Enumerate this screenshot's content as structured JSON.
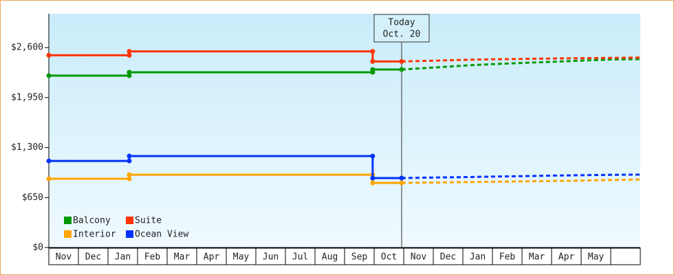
{
  "chart_data": {
    "type": "line",
    "categories": [
      "Nov",
      "Dec",
      "Jan",
      "Feb",
      "Mar",
      "Apr",
      "May",
      "Jun",
      "Jul",
      "Aug",
      "Sep",
      "Oct",
      "Nov",
      "Dec",
      "Jan",
      "Feb",
      "Mar",
      "Apr",
      "May",
      null
    ],
    "xlim": [
      0,
      20
    ],
    "ylim": [
      0,
      3040
    ],
    "yticks": [
      {
        "value": 0,
        "label": "$0"
      },
      {
        "value": 650,
        "label": "$650"
      },
      {
        "value": 1300,
        "label": "$1,300"
      },
      {
        "value": 1950,
        "label": "$1,950"
      },
      {
        "value": 2600,
        "label": "$2,600"
      }
    ],
    "legend": "lower left",
    "annotation": {
      "x": 11.93,
      "lines": [
        "Today",
        "Oct. 20"
      ]
    },
    "series": [
      {
        "name": "Balcony",
        "color": "#009900",
        "x": [
          0,
          2.72,
          2.72,
          10.95,
          10.95,
          11.93
        ],
        "values": [
          2235,
          2235,
          2279,
          2279,
          2315,
          2315
        ],
        "projection_x": [
          11.93,
          13,
          14,
          15,
          16,
          17,
          18,
          19,
          20
        ],
        "projection_values": [
          2315,
          2340,
          2365,
          2385,
          2400,
          2415,
          2430,
          2445,
          2450
        ]
      },
      {
        "name": "Suite",
        "color": "#ff3300",
        "x": [
          0,
          2.72,
          2.72,
          10.95,
          10.95,
          11.93
        ],
        "values": [
          2500,
          2500,
          2550,
          2550,
          2420,
          2420
        ],
        "projection_x": [
          11.93,
          13,
          14,
          15,
          16,
          17,
          18,
          19,
          20
        ],
        "projection_values": [
          2420,
          2430,
          2440,
          2448,
          2452,
          2458,
          2462,
          2466,
          2470
        ]
      },
      {
        "name": "Interior",
        "color": "#ffa500",
        "x": [
          0,
          2.72,
          2.72,
          10.95,
          10.95,
          11.93
        ],
        "values": [
          894,
          894,
          947,
          947,
          840,
          840
        ],
        "projection_x": [
          11.93,
          13,
          14,
          15,
          16,
          17,
          18,
          19,
          20
        ],
        "projection_values": [
          840,
          845,
          850,
          855,
          860,
          865,
          870,
          878,
          885
        ]
      },
      {
        "name": "Ocean View",
        "color": "#0033ff",
        "x": [
          0,
          2.72,
          2.72,
          10.95,
          10.95,
          11.93
        ],
        "values": [
          1126,
          1126,
          1189,
          1189,
          903,
          903
        ],
        "projection_x": [
          11.93,
          13,
          14,
          15,
          16,
          17,
          18,
          19,
          20
        ],
        "projection_values": [
          903,
          910,
          915,
          922,
          928,
          935,
          940,
          945,
          948
        ]
      }
    ]
  }
}
